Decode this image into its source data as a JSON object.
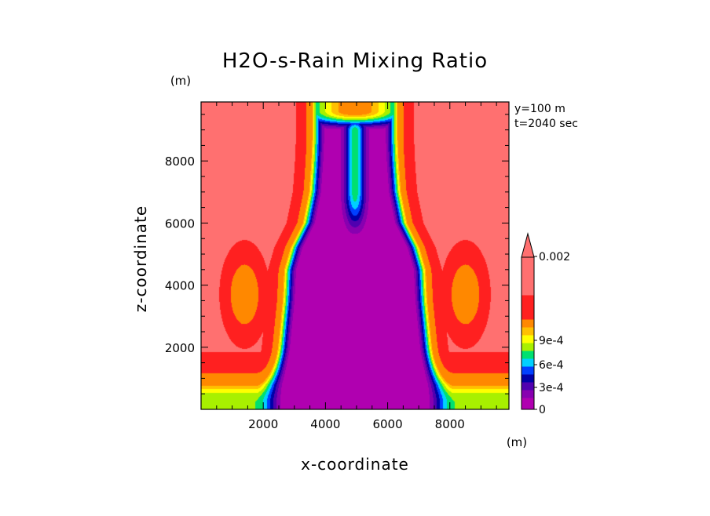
{
  "chart_data": {
    "type": "heatmap",
    "title": "H2O-s-Rain Mixing Ratio",
    "xlabel": "x-coordinate",
    "ylabel": "z-coordinate",
    "x_unit": "(m)",
    "y_unit": "(m)",
    "xlim": [
      0,
      9900
    ],
    "ylim": [
      0,
      9900
    ],
    "x_ticks": [
      2000,
      4000,
      6000,
      8000
    ],
    "y_ticks": [
      2000,
      4000,
      6000,
      8000
    ],
    "annotations": [
      "y=100 m",
      "t=2040 sec"
    ],
    "colorbar": {
      "tick_labels": [
        "0",
        "3e-4",
        "6e-4",
        "9e-4",
        "0.002"
      ],
      "levels": [
        0,
        0.0001,
        0.0002,
        0.0003,
        0.0004,
        0.0005,
        0.0006,
        0.0007,
        0.0008,
        0.0009,
        0.001,
        0.0015,
        0.002
      ],
      "colors": [
        "#b000b0",
        "#8800b0",
        "#5000b0",
        "#0000a8",
        "#0040ff",
        "#00d0ff",
        "#00e070",
        "#a8f000",
        "#ffff00",
        "#ffc000",
        "#ff8800",
        "#ff2020",
        "#ff7070"
      ],
      "extend": "max"
    },
    "field_description": "Rain mixing ratio field at t=2040 sec: a central column with values near 0, a symmetric M-shaped updraft outline (blue to green, peaking around x=4200 and x=5800 near z=9000 m, dipping to z=6800 m at x=5000), and high values (~0.002+) in the upper corners and outer regions, with orange/yellow lobes around z=3800 m near x=1400 and x=8600."
  }
}
